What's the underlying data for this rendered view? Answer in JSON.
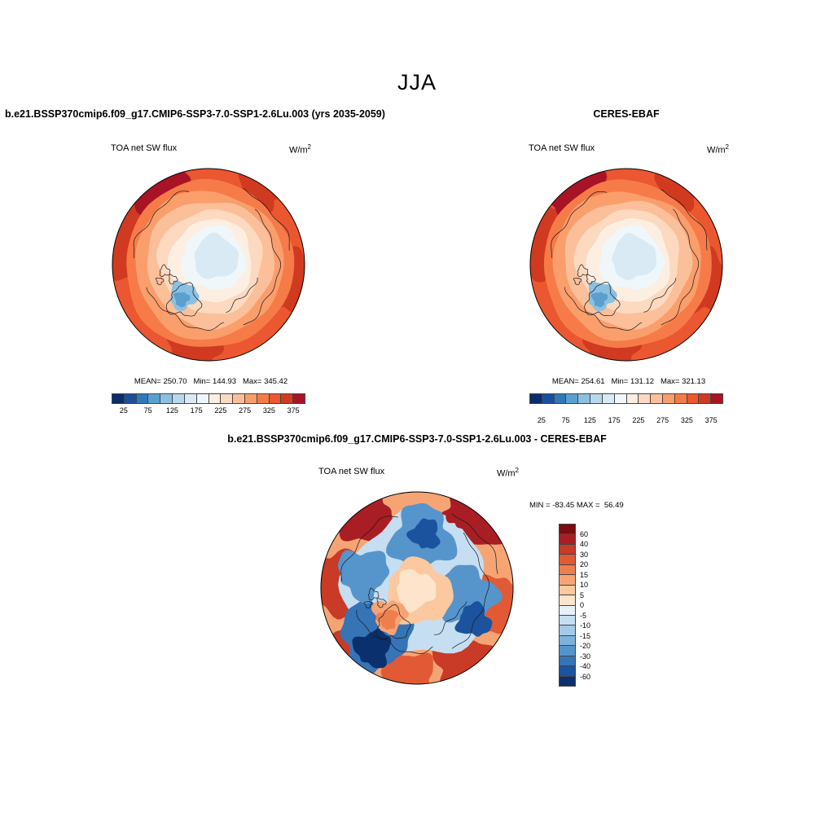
{
  "title": "JJA",
  "panels": [
    {
      "title": "b.e21.BSSP370cmip6.f09_g17.CMIP6-SSP3-7.0-SSP1-2.6Lu.003 (yrs 2035-2059)",
      "field_label": "TOA net SW flux",
      "units": "W/m",
      "units_exp": "2",
      "stats": "MEAN= 250.70   Min= 144.93   Max= 345.42"
    },
    {
      "title": "CERES-EBAF",
      "field_label": "TOA net SW flux",
      "units": "W/m",
      "units_exp": "2",
      "stats": "MEAN= 254.61   Min= 131.12   Max= 321.13"
    },
    {
      "title": "b.e21.BSSP370cmip6.f09_g17.CMIP6-SSP3-7.0-SSP1-2.6Lu.003 - CERES-EBAF",
      "field_label": "TOA net SW flux",
      "units": "W/m",
      "units_exp": "2",
      "stats": "MIN = -83.45 MAX =  56.49"
    }
  ],
  "colorbar_abs": {
    "ticks": [
      "25",
      "75",
      "125",
      "175",
      "225",
      "275",
      "325",
      "375"
    ],
    "colors": [
      "#0a2d6b",
      "#1a4f9c",
      "#2e7ab8",
      "#5aa0cf",
      "#8cc0e0",
      "#b8d9ec",
      "#d9eaf5",
      "#f0f7fb",
      "#fdeee2",
      "#fcd9bf",
      "#fbbf99",
      "#fa9e6c",
      "#f67b49",
      "#ea5730",
      "#d03a21",
      "#a81426"
    ]
  },
  "colorbar_diff": {
    "labels": [
      "60",
      "40",
      "30",
      "20",
      "15",
      "10",
      "5",
      "0",
      "-5",
      "-10",
      "-15",
      "-20",
      "-30",
      "-40",
      "-60"
    ],
    "colors": [
      "#7a0c12",
      "#a81e24",
      "#c93a27",
      "#e25a35",
      "#ef7e4e",
      "#f7a474",
      "#fbc89f",
      "#fde4cb",
      "#e8f1fa",
      "#c6def1",
      "#a3cbe7",
      "#7cb2dc",
      "#5595cc",
      "#3674b6",
      "#1c539f",
      "#0a306e"
    ]
  },
  "chart_data": [
    {
      "type": "heatmap",
      "subtype": "north-polar-stereographic-map",
      "season": "JJA",
      "title": "b.e21.BSSP370cmip6.f09_g17.CMIP6-SSP3-7.0-SSP1-2.6Lu.003 (yrs 2035-2059)",
      "variable": "TOA net SW flux",
      "units": "W/m^2",
      "stats": {
        "mean": 250.7,
        "min": 144.93,
        "max": 345.42
      },
      "colorbar_ticks": [
        25,
        75,
        125,
        175,
        225,
        275,
        325,
        375
      ],
      "legend_position": "bottom"
    },
    {
      "type": "heatmap",
      "subtype": "north-polar-stereographic-map",
      "season": "JJA",
      "title": "CERES-EBAF",
      "variable": "TOA net SW flux",
      "units": "W/m^2",
      "stats": {
        "mean": 254.61,
        "min": 131.12,
        "max": 321.13
      },
      "colorbar_ticks": [
        25,
        75,
        125,
        175,
        225,
        275,
        325,
        375
      ],
      "legend_position": "bottom"
    },
    {
      "type": "heatmap",
      "subtype": "north-polar-stereographic-map-difference",
      "season": "JJA",
      "title": "b.e21.BSSP370cmip6.f09_g17.CMIP6-SSP3-7.0-SSP1-2.6Lu.003 - CERES-EBAF",
      "variable": "TOA net SW flux",
      "units": "W/m^2",
      "stats": {
        "min": -83.45,
        "max": 56.49
      },
      "colorbar_levels": [
        60,
        40,
        30,
        20,
        15,
        10,
        5,
        0,
        -5,
        -10,
        -15,
        -20,
        -30,
        -40,
        -60
      ],
      "legend_position": "right"
    }
  ]
}
